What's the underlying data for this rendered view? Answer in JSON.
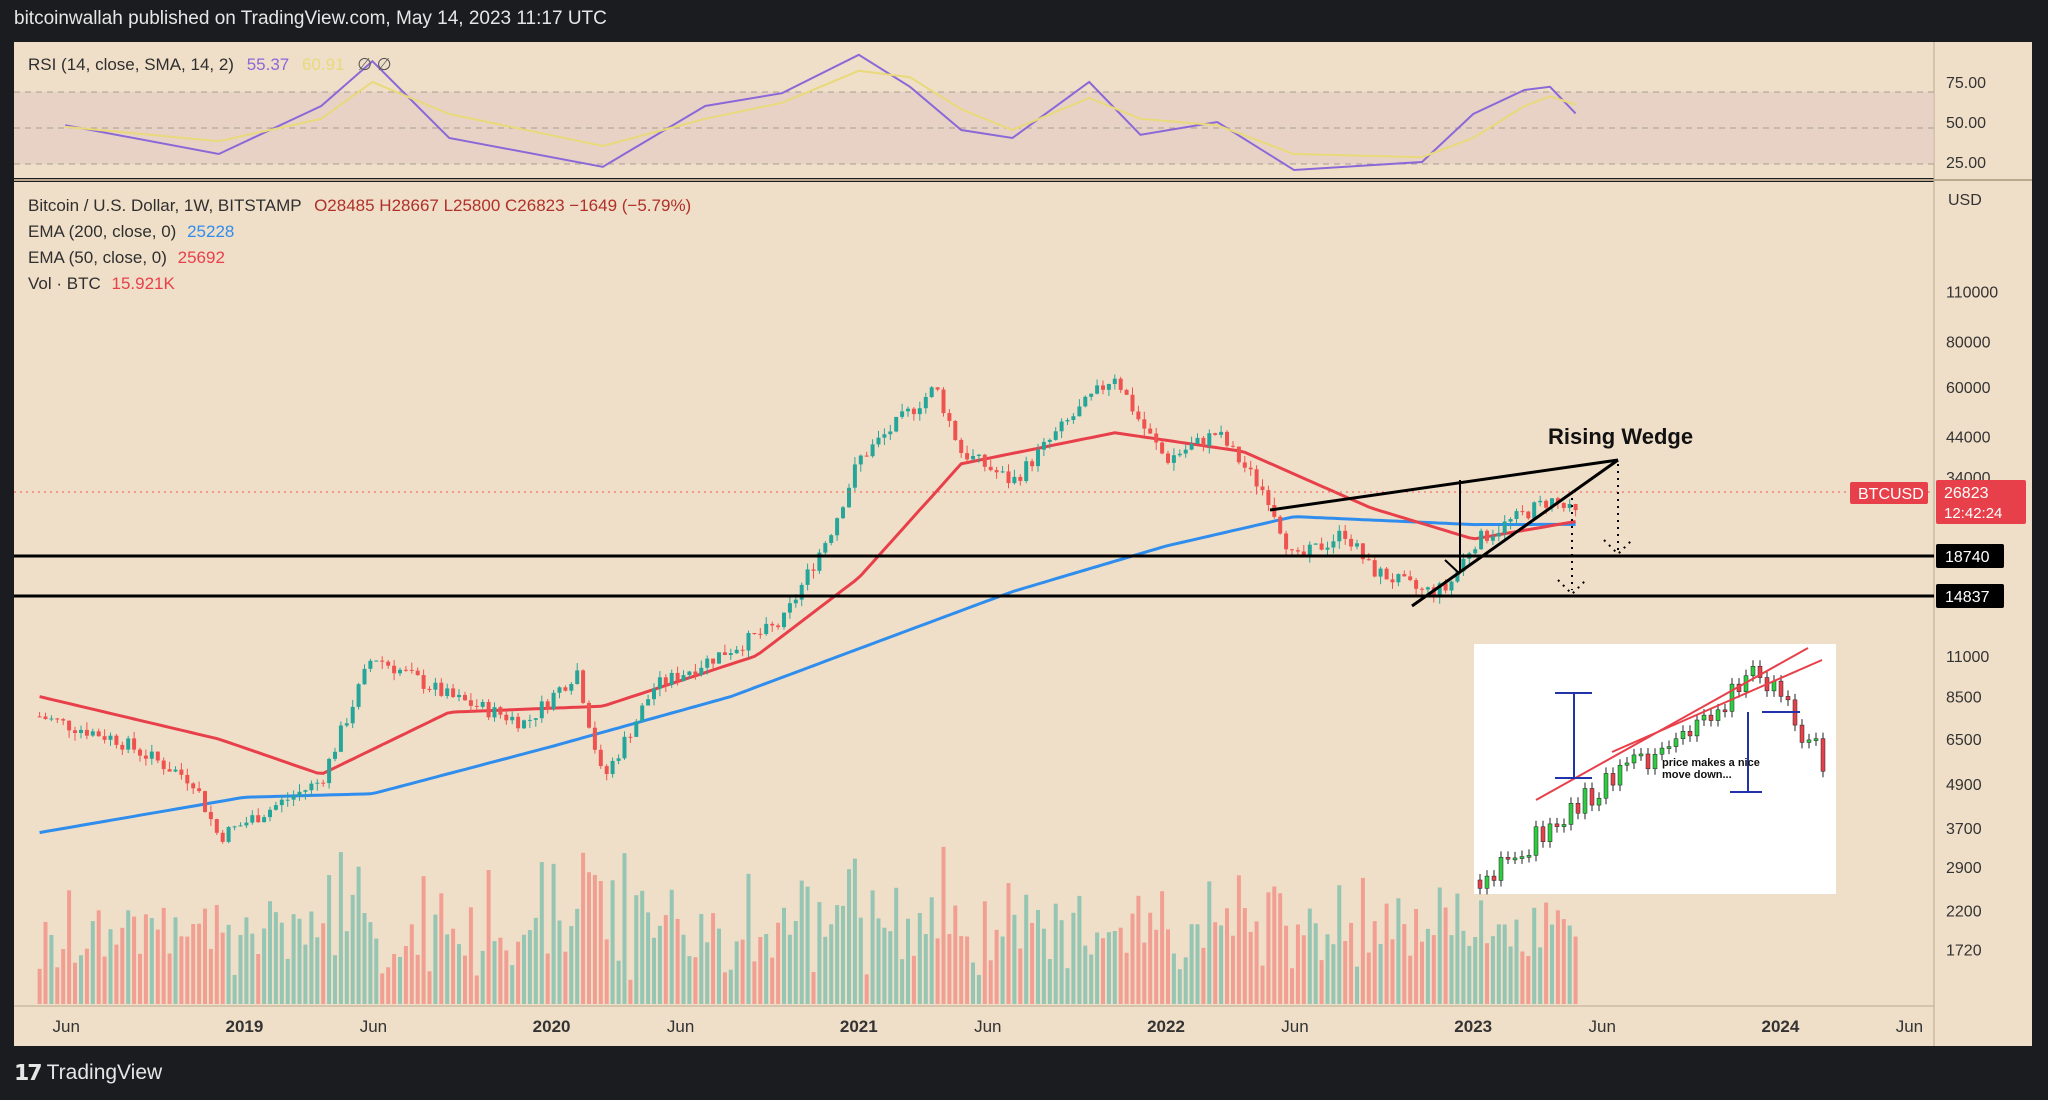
{
  "header": {
    "published_by": "bitcoinwallah published on TradingView.com, May 14, 2023 11:17 UTC"
  },
  "footer": {
    "brand": "TradingView"
  },
  "rsi_legend": {
    "label": "RSI (14, close, SMA, 14, 2)",
    "value": "55.37",
    "sma_value": "60.91",
    "extra": "∅  ∅"
  },
  "price_legend": {
    "symbol": "Bitcoin / U.S. Dollar, 1W, BITSTAMP",
    "ohlc": "O28485  H28667  L25800  C26823  −1649 (−5.79%)",
    "ema200_label": "EMA (200, close, 0)",
    "ema200_value": "25228",
    "ema50_label": "EMA (50, close, 0)",
    "ema50_value": "25692",
    "vol_label": "Vol · BTC",
    "vol_value": "15.921K"
  },
  "colors": {
    "background": "#f0dfc8",
    "up": "#26a69a",
    "down": "#ef5350",
    "ema200": "#2f8ded",
    "ema50": "#e8404a",
    "rsi": "#8b68d8",
    "rsi_sma": "#e8d97a"
  },
  "annotations": {
    "pattern_title": "Rising Wedge",
    "inset_caption_1": "price makes a nice",
    "inset_caption_2": "move down..."
  },
  "price_tags": {
    "symbol": "BTCUSD",
    "last_price": "26823",
    "countdown": "12:42:24",
    "support_1": "18740",
    "support_2": "14837"
  },
  "chart_data": [
    {
      "type": "line",
      "title": "RSI (14, close, SMA, 14, 2)",
      "y_ticks": [
        "75.00",
        "50.00",
        "25.00"
      ],
      "ylim": [
        15,
        100
      ],
      "series": [
        {
          "name": "RSI",
          "x": [
            "2018-06",
            "2018-12",
            "2019-04",
            "2019-06",
            "2019-09",
            "2020-03",
            "2020-07",
            "2020-10",
            "2021-01",
            "2021-03",
            "2021-05",
            "2021-07",
            "2021-10",
            "2021-12",
            "2022-03",
            "2022-06",
            "2022-11",
            "2023-01",
            "2023-03",
            "2023-04",
            "2023-05"
          ],
          "values": [
            48,
            30,
            60,
            88,
            40,
            22,
            60,
            68,
            92,
            72,
            45,
            40,
            75,
            42,
            50,
            20,
            25,
            55,
            70,
            72,
            55.37
          ]
        },
        {
          "name": "SMA",
          "x": [
            "2018-06",
            "2018-12",
            "2019-04",
            "2019-06",
            "2019-09",
            "2020-03",
            "2020-07",
            "2020-10",
            "2021-01",
            "2021-03",
            "2021-05",
            "2021-07",
            "2021-10",
            "2021-12",
            "2022-03",
            "2022-06",
            "2022-11",
            "2023-01",
            "2023-03",
            "2023-04",
            "2023-05"
          ],
          "values": [
            47,
            38,
            52,
            75,
            55,
            35,
            52,
            62,
            82,
            78,
            58,
            45,
            65,
            52,
            48,
            30,
            28,
            40,
            60,
            66,
            60.91
          ]
        }
      ]
    },
    {
      "type": "line",
      "title": "Bitcoin / U.S. Dollar, 1W, BITSTAMP",
      "ylabel": "USD",
      "y_scale": "log",
      "y_ticks": [
        "110000",
        "80000",
        "60000",
        "44000",
        "34000",
        "11000",
        "8500",
        "6500",
        "4900",
        "3700",
        "2900",
        "2200",
        "1720"
      ],
      "x_ticks": [
        "Jun",
        "2019",
        "Jun",
        "2020",
        "Jun",
        "2021",
        "Jun",
        "2022",
        "Jun",
        "2023",
        "Jun",
        "2024",
        "Jun"
      ],
      "series": [
        {
          "name": "BTCUSD",
          "x": [
            "2018-05",
            "2018-08",
            "2018-11",
            "2018-12",
            "2019-04",
            "2019-06",
            "2019-09",
            "2019-12",
            "2020-02",
            "2020-03",
            "2020-05",
            "2020-08",
            "2020-10",
            "2020-12",
            "2021-01",
            "2021-04",
            "2021-05",
            "2021-07",
            "2021-09",
            "2021-11",
            "2021-12",
            "2022-01",
            "2022-03",
            "2022-05",
            "2022-06",
            "2022-08",
            "2022-09",
            "2022-11",
            "2022-12",
            "2023-01",
            "2023-03",
            "2023-04",
            "2023-05"
          ],
          "values": [
            7500,
            6500,
            5000,
            3500,
            5000,
            11000,
            8500,
            7200,
            10000,
            5000,
            9000,
            11500,
            13500,
            25000,
            38000,
            60000,
            40000,
            33000,
            47000,
            65000,
            48000,
            38000,
            45000,
            30000,
            20000,
            24000,
            19000,
            16500,
            16800,
            22500,
            27000,
            29500,
            26823
          ]
        },
        {
          "name": "EMA (200, close, 0)",
          "x": [
            "2018-05",
            "2019-01",
            "2019-06",
            "2020-01",
            "2020-08",
            "2021-01",
            "2021-07",
            "2022-01",
            "2022-06",
            "2023-01",
            "2023-05"
          ],
          "values": [
            3600,
            4500,
            4600,
            6200,
            8500,
            11500,
            16500,
            22000,
            26500,
            25200,
            25228
          ]
        },
        {
          "name": "EMA (50, close, 0)",
          "x": [
            "2018-05",
            "2018-12",
            "2019-04",
            "2019-09",
            "2020-03",
            "2020-09",
            "2021-01",
            "2021-05",
            "2021-11",
            "2022-04",
            "2022-09",
            "2023-01",
            "2023-05"
          ],
          "values": [
            8500,
            6500,
            5200,
            7700,
            8000,
            11000,
            18000,
            37000,
            45000,
            40000,
            28000,
            23000,
            25692
          ]
        }
      ]
    },
    {
      "type": "bar",
      "title": "Vol · BTC",
      "series": [
        {
          "name": "Vol · BTC",
          "last": "15.921K"
        }
      ]
    }
  ]
}
